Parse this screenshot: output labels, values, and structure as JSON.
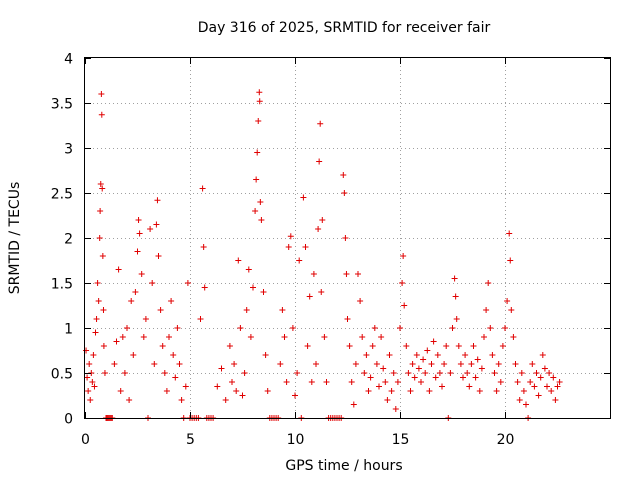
{
  "chart_data": {
    "type": "scatter",
    "title": "Day 316 of 2025, SRMTID for receiver fair",
    "xlabel": "GPS time / hours",
    "ylabel": "SRMTID / TECUs",
    "xlim": [
      0,
      25
    ],
    "ylim": [
      0,
      4
    ],
    "xticks": [
      0,
      5,
      10,
      15,
      20
    ],
    "xtick_labels": [
      "0",
      "5",
      "10",
      "15",
      "20"
    ],
    "yticks": [
      0,
      0.5,
      1,
      1.5,
      2,
      2.5,
      3,
      3.5,
      4
    ],
    "ytick_labels": [
      "0",
      "0.5",
      "1",
      "1.5",
      "2",
      "2.5",
      "3",
      "3.5",
      "4"
    ],
    "grid": true,
    "marker": "+",
    "color": "#e00000",
    "series": [
      {
        "name": "SRMTID",
        "points": [
          [
            0.05,
            0.75
          ],
          [
            0.1,
            0.45
          ],
          [
            0.15,
            0.3
          ],
          [
            0.2,
            0.6
          ],
          [
            0.25,
            0.2
          ],
          [
            0.3,
            0.5
          ],
          [
            0.35,
            0.4
          ],
          [
            0.4,
            0.7
          ],
          [
            0.45,
            0.35
          ],
          [
            0.5,
            0.95
          ],
          [
            0.55,
            1.1
          ],
          [
            0.6,
            1.5
          ],
          [
            0.65,
            1.3
          ],
          [
            0.7,
            2.0
          ],
          [
            0.72,
            2.3
          ],
          [
            0.75,
            2.6
          ],
          [
            0.78,
            3.6
          ],
          [
            0.8,
            3.37
          ],
          [
            0.82,
            2.55
          ],
          [
            0.85,
            1.8
          ],
          [
            0.88,
            1.2
          ],
          [
            0.9,
            0.8
          ],
          [
            0.95,
            0.5
          ],
          [
            1.0,
            0.0
          ],
          [
            1.05,
            0.0
          ],
          [
            1.1,
            0.0
          ],
          [
            1.15,
            0.0
          ],
          [
            1.2,
            0.0
          ],
          [
            1.25,
            0.0
          ],
          [
            1.3,
            0.0
          ],
          [
            1.4,
            0.6
          ],
          [
            1.5,
            0.85
          ],
          [
            1.6,
            1.65
          ],
          [
            1.7,
            0.3
          ],
          [
            1.8,
            0.9
          ],
          [
            1.9,
            0.5
          ],
          [
            2.0,
            1.0
          ],
          [
            2.1,
            0.2
          ],
          [
            2.2,
            1.3
          ],
          [
            2.3,
            0.7
          ],
          [
            2.4,
            1.4
          ],
          [
            2.5,
            1.85
          ],
          [
            2.55,
            2.2
          ],
          [
            2.6,
            2.05
          ],
          [
            2.7,
            1.6
          ],
          [
            2.8,
            0.9
          ],
          [
            2.9,
            1.1
          ],
          [
            3.0,
            0.0
          ],
          [
            3.1,
            2.1
          ],
          [
            3.2,
            1.5
          ],
          [
            3.3,
            0.6
          ],
          [
            3.4,
            2.15
          ],
          [
            3.45,
            2.42
          ],
          [
            3.5,
            1.8
          ],
          [
            3.6,
            1.2
          ],
          [
            3.7,
            0.8
          ],
          [
            3.8,
            0.5
          ],
          [
            3.9,
            0.3
          ],
          [
            4.0,
            0.9
          ],
          [
            4.1,
            1.3
          ],
          [
            4.2,
            0.7
          ],
          [
            4.3,
            0.45
          ],
          [
            4.4,
            1.0
          ],
          [
            4.5,
            0.6
          ],
          [
            4.6,
            0.2
          ],
          [
            4.7,
            0.0
          ],
          [
            4.8,
            0.35
          ],
          [
            4.9,
            1.5
          ],
          [
            5.0,
            0.0
          ],
          [
            5.1,
            0.0
          ],
          [
            5.2,
            0.0
          ],
          [
            5.3,
            0.0
          ],
          [
            5.4,
            0.0
          ],
          [
            5.5,
            1.1
          ],
          [
            5.6,
            2.55
          ],
          [
            5.65,
            1.9
          ],
          [
            5.7,
            1.45
          ],
          [
            5.8,
            0.0
          ],
          [
            5.9,
            0.0
          ],
          [
            6.0,
            0.0
          ],
          [
            6.1,
            0.0
          ],
          [
            6.3,
            0.35
          ],
          [
            6.5,
            0.55
          ],
          [
            6.7,
            0.2
          ],
          [
            6.9,
            0.8
          ],
          [
            7.0,
            0.4
          ],
          [
            7.1,
            0.6
          ],
          [
            7.2,
            0.3
          ],
          [
            7.3,
            1.75
          ],
          [
            7.4,
            1.0
          ],
          [
            7.5,
            0.25
          ],
          [
            7.6,
            0.5
          ],
          [
            7.7,
            1.2
          ],
          [
            7.8,
            1.65
          ],
          [
            7.9,
            0.9
          ],
          [
            8.0,
            1.45
          ],
          [
            8.1,
            2.3
          ],
          [
            8.15,
            2.65
          ],
          [
            8.2,
            2.95
          ],
          [
            8.25,
            3.3
          ],
          [
            8.3,
            3.62
          ],
          [
            8.32,
            3.52
          ],
          [
            8.35,
            2.4
          ],
          [
            8.4,
            2.2
          ],
          [
            8.5,
            1.4
          ],
          [
            8.6,
            0.7
          ],
          [
            8.7,
            0.3
          ],
          [
            8.8,
            0.0
          ],
          [
            8.9,
            0.0
          ],
          [
            9.0,
            0.0
          ],
          [
            9.1,
            0.0
          ],
          [
            9.2,
            0.0
          ],
          [
            9.3,
            0.6
          ],
          [
            9.4,
            1.2
          ],
          [
            9.5,
            0.9
          ],
          [
            9.6,
            0.4
          ],
          [
            9.7,
            1.9
          ],
          [
            9.8,
            2.02
          ],
          [
            9.9,
            1.0
          ],
          [
            10.0,
            0.25
          ],
          [
            10.1,
            0.5
          ],
          [
            10.2,
            1.75
          ],
          [
            10.3,
            0.0
          ],
          [
            10.4,
            2.45
          ],
          [
            10.5,
            1.9
          ],
          [
            10.6,
            0.8
          ],
          [
            10.7,
            1.35
          ],
          [
            10.8,
            0.4
          ],
          [
            10.9,
            1.6
          ],
          [
            11.0,
            0.6
          ],
          [
            11.1,
            2.1
          ],
          [
            11.15,
            2.85
          ],
          [
            11.2,
            3.27
          ],
          [
            11.25,
            1.4
          ],
          [
            11.3,
            2.2
          ],
          [
            11.4,
            0.9
          ],
          [
            11.5,
            0.4
          ],
          [
            11.6,
            0.0
          ],
          [
            11.7,
            0.0
          ],
          [
            11.8,
            0.0
          ],
          [
            11.9,
            0.0
          ],
          [
            12.0,
            0.0
          ],
          [
            12.1,
            0.0
          ],
          [
            12.2,
            0.0
          ],
          [
            12.3,
            2.7
          ],
          [
            12.35,
            2.5
          ],
          [
            12.4,
            2.0
          ],
          [
            12.45,
            1.6
          ],
          [
            12.5,
            1.1
          ],
          [
            12.6,
            0.8
          ],
          [
            12.7,
            0.4
          ],
          [
            12.8,
            0.15
          ],
          [
            12.9,
            0.6
          ],
          [
            13.0,
            1.6
          ],
          [
            13.1,
            1.3
          ],
          [
            13.2,
            0.9
          ],
          [
            13.3,
            0.5
          ],
          [
            13.4,
            0.7
          ],
          [
            13.5,
            0.3
          ],
          [
            13.6,
            0.45
          ],
          [
            13.7,
            0.8
          ],
          [
            13.8,
            1.0
          ],
          [
            13.9,
            0.6
          ],
          [
            14.0,
            0.35
          ],
          [
            14.1,
            0.9
          ],
          [
            14.2,
            0.55
          ],
          [
            14.3,
            0.4
          ],
          [
            14.4,
            0.2
          ],
          [
            14.5,
            0.7
          ],
          [
            14.6,
            0.3
          ],
          [
            14.7,
            0.5
          ],
          [
            14.8,
            0.1
          ],
          [
            14.9,
            0.4
          ],
          [
            15.0,
            1.0
          ],
          [
            15.1,
            1.5
          ],
          [
            15.15,
            1.8
          ],
          [
            15.2,
            1.25
          ],
          [
            15.3,
            0.8
          ],
          [
            15.4,
            0.5
          ],
          [
            15.5,
            0.3
          ],
          [
            15.6,
            0.6
          ],
          [
            15.7,
            0.45
          ],
          [
            15.8,
            0.7
          ],
          [
            15.9,
            0.55
          ],
          [
            16.0,
            0.4
          ],
          [
            16.1,
            0.65
          ],
          [
            16.2,
            0.5
          ],
          [
            16.3,
            0.75
          ],
          [
            16.4,
            0.3
          ],
          [
            16.5,
            0.6
          ],
          [
            16.6,
            0.85
          ],
          [
            16.7,
            0.45
          ],
          [
            16.8,
            0.7
          ],
          [
            16.9,
            0.5
          ],
          [
            17.0,
            0.35
          ],
          [
            17.1,
            0.6
          ],
          [
            17.2,
            0.8
          ],
          [
            17.3,
            0.0
          ],
          [
            17.4,
            0.5
          ],
          [
            17.5,
            1.0
          ],
          [
            17.6,
            1.55
          ],
          [
            17.65,
            1.35
          ],
          [
            17.7,
            1.1
          ],
          [
            17.8,
            0.8
          ],
          [
            17.9,
            0.6
          ],
          [
            18.0,
            0.45
          ],
          [
            18.1,
            0.7
          ],
          [
            18.2,
            0.5
          ],
          [
            18.3,
            0.35
          ],
          [
            18.4,
            0.6
          ],
          [
            18.5,
            0.8
          ],
          [
            18.6,
            0.45
          ],
          [
            18.7,
            0.65
          ],
          [
            18.8,
            0.3
          ],
          [
            18.9,
            0.55
          ],
          [
            19.0,
            0.9
          ],
          [
            19.1,
            1.2
          ],
          [
            19.2,
            1.5
          ],
          [
            19.3,
            1.0
          ],
          [
            19.4,
            0.7
          ],
          [
            19.5,
            0.5
          ],
          [
            19.6,
            0.3
          ],
          [
            19.7,
            0.6
          ],
          [
            19.8,
            0.4
          ],
          [
            19.9,
            0.8
          ],
          [
            20.0,
            1.0
          ],
          [
            20.1,
            1.3
          ],
          [
            20.2,
            2.05
          ],
          [
            20.25,
            1.75
          ],
          [
            20.3,
            1.2
          ],
          [
            20.4,
            0.9
          ],
          [
            20.5,
            0.6
          ],
          [
            20.6,
            0.4
          ],
          [
            20.7,
            0.2
          ],
          [
            20.8,
            0.5
          ],
          [
            20.9,
            0.3
          ],
          [
            21.0,
            0.15
          ],
          [
            21.1,
            0.0
          ],
          [
            21.2,
            0.4
          ],
          [
            21.3,
            0.6
          ],
          [
            21.4,
            0.35
          ],
          [
            21.5,
            0.5
          ],
          [
            21.6,
            0.25
          ],
          [
            21.7,
            0.45
          ],
          [
            21.8,
            0.7
          ],
          [
            21.9,
            0.55
          ],
          [
            22.0,
            0.35
          ],
          [
            22.1,
            0.5
          ],
          [
            22.2,
            0.3
          ],
          [
            22.3,
            0.45
          ],
          [
            22.4,
            0.2
          ],
          [
            22.5,
            0.35
          ],
          [
            22.6,
            0.4
          ]
        ]
      }
    ]
  }
}
